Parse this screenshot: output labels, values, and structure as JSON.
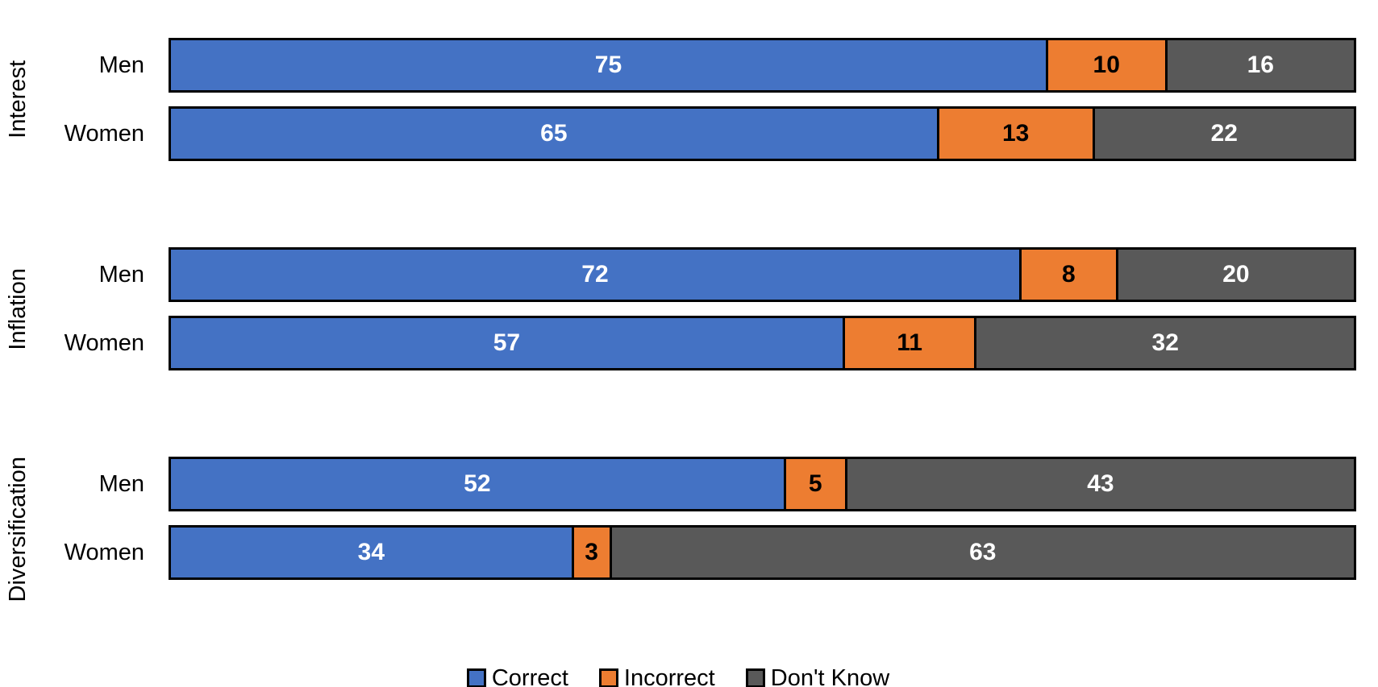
{
  "chart_data": {
    "type": "bar",
    "orientation": "horizontal",
    "stacked": true,
    "percent_of_total": true,
    "title": "",
    "xlabel": "",
    "ylabel": "",
    "axis_ticks_visible": false,
    "grid": false,
    "bar_border_color": "#000000",
    "series": [
      {
        "name": "Correct",
        "color": "#4472C4",
        "label_color": "#FFFFFF"
      },
      {
        "name": "Incorrect",
        "color": "#ED7D31",
        "label_color": "#000000"
      },
      {
        "name": "Don't Know",
        "color": "#595959",
        "label_color": "#FFFFFF"
      }
    ],
    "groups": [
      {
        "label": "Interest",
        "rows": [
          {
            "category": "Men",
            "values": [
              75,
              10,
              16
            ]
          },
          {
            "category": "Women",
            "values": [
              65,
              13,
              22
            ]
          }
        ]
      },
      {
        "label": "Inflation",
        "rows": [
          {
            "category": "Men",
            "values": [
              72,
              8,
              20
            ]
          },
          {
            "category": "Women",
            "values": [
              57,
              11,
              32
            ]
          }
        ]
      },
      {
        "label": "Diversification",
        "rows": [
          {
            "category": "Men",
            "values": [
              52,
              5,
              43
            ]
          },
          {
            "category": "Women",
            "values": [
              34,
              3,
              63
            ]
          }
        ]
      }
    ],
    "legend": {
      "position": "bottom",
      "entries": [
        "Correct",
        "Incorrect",
        "Don't Know"
      ]
    }
  }
}
